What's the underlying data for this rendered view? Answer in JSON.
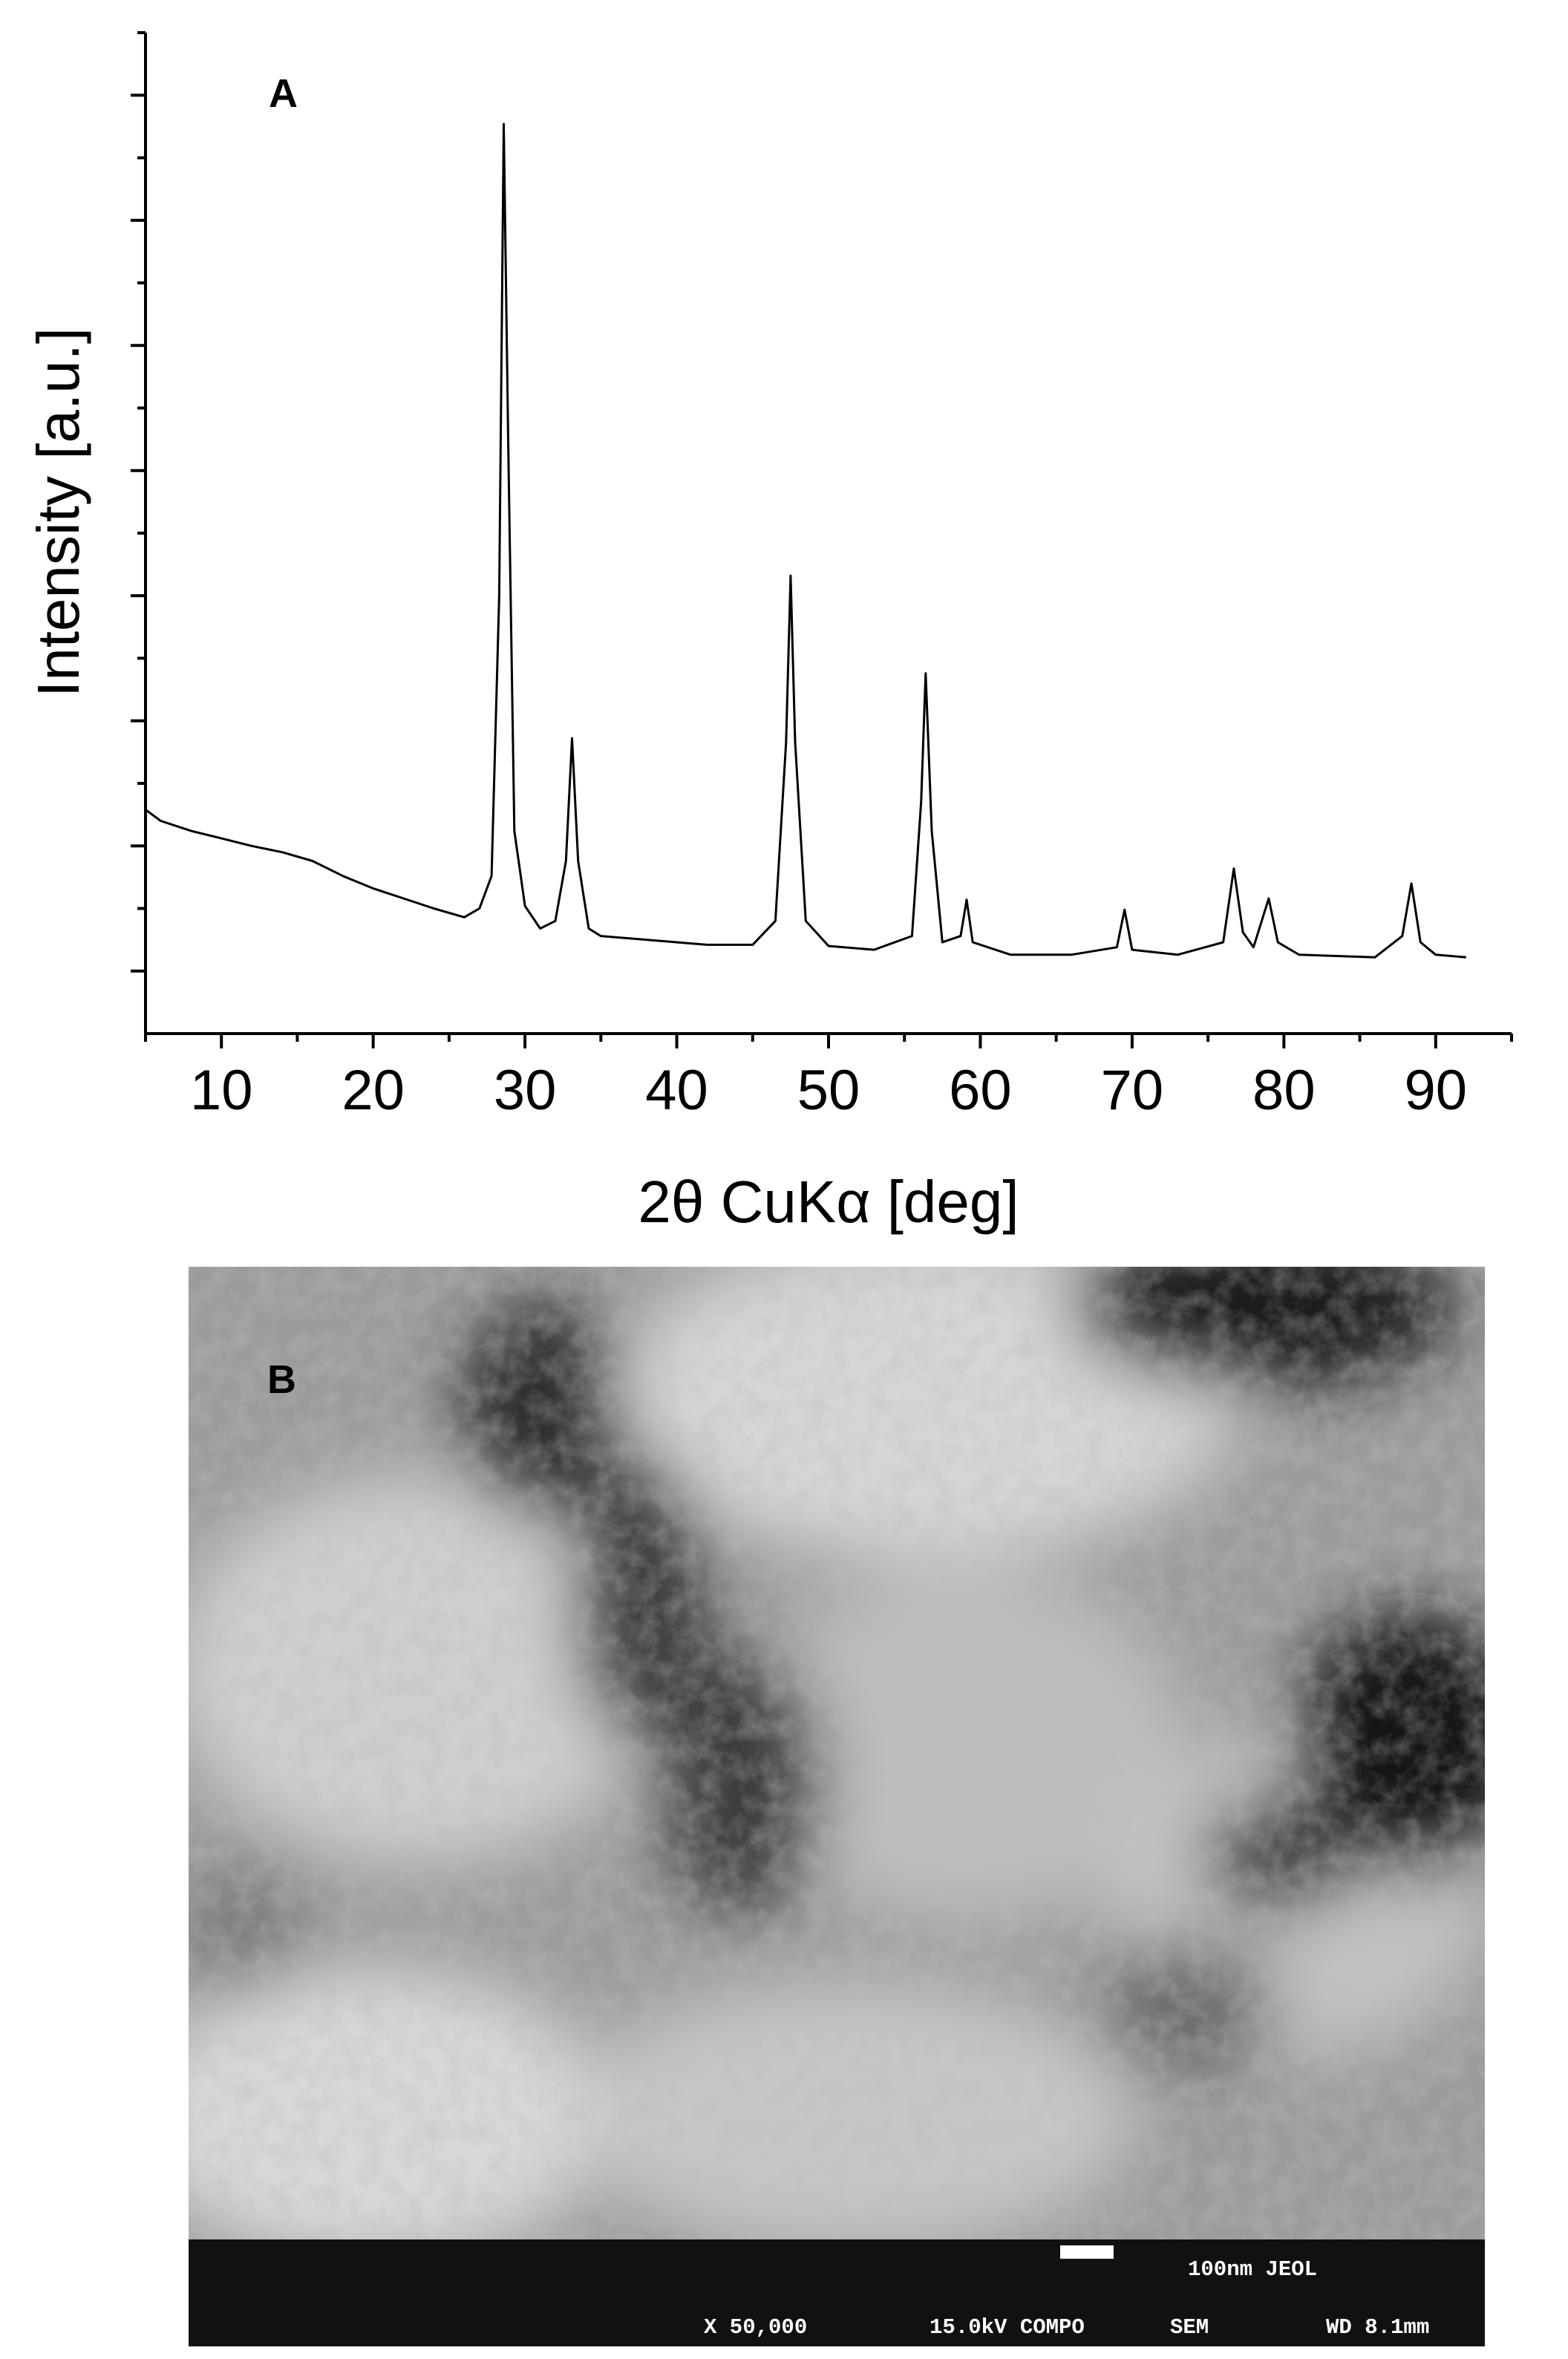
{
  "chart_data": {
    "type": "line",
    "panel_label": "A",
    "x_label": "2θ CuKα [deg]",
    "y_label": "Intensity [a.u.]",
    "x": [
      5,
      6,
      8,
      10,
      12,
      14,
      16,
      18,
      20,
      22,
      24,
      26,
      27,
      27.8,
      28.3,
      28.6,
      28.9,
      29.3,
      30,
      31,
      32,
      32.7,
      33.1,
      33.5,
      34.2,
      35,
      38,
      42,
      45,
      46.5,
      47.2,
      47.5,
      47.8,
      48.5,
      50,
      53,
      55.5,
      56.1,
      56.4,
      56.8,
      57.5,
      58.7,
      59.1,
      59.5,
      62,
      66,
      69,
      69.5,
      70,
      73,
      76,
      76.7,
      77.3,
      78,
      79,
      79.6,
      81,
      86,
      87.8,
      88.4,
      89,
      90,
      92
    ],
    "values": [
      1.29,
      1.2,
      1.12,
      1.06,
      1.0,
      0.95,
      0.88,
      0.76,
      0.66,
      0.58,
      0.5,
      0.43,
      0.5,
      0.76,
      3.0,
      6.77,
      4.2,
      1.12,
      0.52,
      0.34,
      0.4,
      0.88,
      1.86,
      0.88,
      0.34,
      0.28,
      0.25,
      0.21,
      0.21,
      0.4,
      1.83,
      3.16,
      1.83,
      0.4,
      0.2,
      0.17,
      0.28,
      1.35,
      2.38,
      1.12,
      0.23,
      0.28,
      0.57,
      0.23,
      0.13,
      0.13,
      0.19,
      0.49,
      0.17,
      0.13,
      0.23,
      0.82,
      0.31,
      0.19,
      0.58,
      0.23,
      0.13,
      0.11,
      0.28,
      0.7,
      0.23,
      0.13,
      0.11
    ],
    "color": "#000000",
    "xlim": [
      5,
      95
    ],
    "xticks": [
      10,
      20,
      30,
      40,
      50,
      60,
      70,
      80,
      90
    ],
    "xticks_minor": [
      5,
      15,
      25,
      35,
      45,
      55,
      65,
      75,
      85,
      95
    ],
    "ylim": [
      -0.5,
      7.5
    ],
    "yticks": [
      0,
      1,
      2,
      3,
      4,
      5,
      6,
      7
    ],
    "yticks_minor": [
      0.5,
      1.5,
      2.5,
      3.5,
      4.5,
      5.5,
      6.5,
      7.5
    ],
    "ytick_labels": false,
    "grid": false
  },
  "sem_image": {
    "panel_label": "B",
    "info_bar": {
      "scale": "100nm JEOL",
      "magnification": "X 50,000",
      "voltage_mode": "15.0kV COMPO",
      "detector": "SEM",
      "working_distance": "WD 8.1mm"
    }
  }
}
